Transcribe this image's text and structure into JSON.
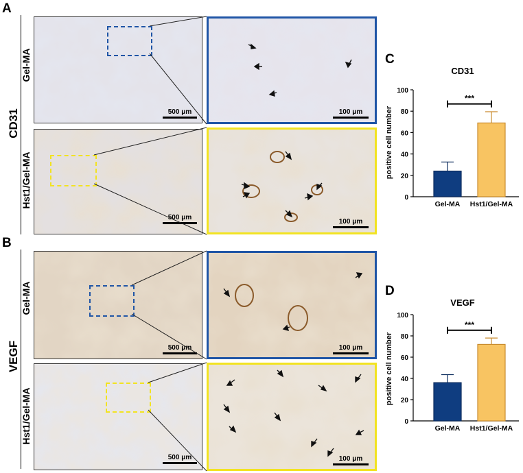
{
  "panels": {
    "A": "A",
    "B": "B",
    "C": "C",
    "D": "D"
  },
  "rows": {
    "cd31": "CD31",
    "vegf": "VEGF"
  },
  "groups": {
    "gel": "Gel-MA",
    "hst": "Hst1/Gel-MA"
  },
  "scale_bars": {
    "low": "500 μm",
    "high": "100 μm"
  },
  "colors": {
    "gel_frame": "#1f55a6",
    "hst_frame": "#f2e321",
    "gel_bar": "#0f3d80",
    "hst_bar": "#f8c462"
  },
  "chart_data": [
    {
      "type": "bar",
      "title": "CD31",
      "categories": [
        "Gel-MA",
        "Hst1/Gel-MA"
      ],
      "values": [
        24,
        69
      ],
      "errors": [
        8.5,
        10.5
      ],
      "ylabel": "positive cell number",
      "ylim": [
        0,
        100
      ],
      "yticks": [
        "0",
        "20",
        "40",
        "60",
        "80",
        "100"
      ],
      "significance": "***"
    },
    {
      "type": "bar",
      "title": "VEGF",
      "categories": [
        "Gel-MA",
        "Hst1/Gel-MA"
      ],
      "values": [
        36,
        72
      ],
      "errors": [
        7.5,
        6
      ],
      "ylabel": "positive cell number",
      "ylim": [
        0,
        100
      ],
      "yticks": [
        "0",
        "20",
        "40",
        "60",
        "80",
        "100"
      ],
      "significance": "***"
    }
  ]
}
